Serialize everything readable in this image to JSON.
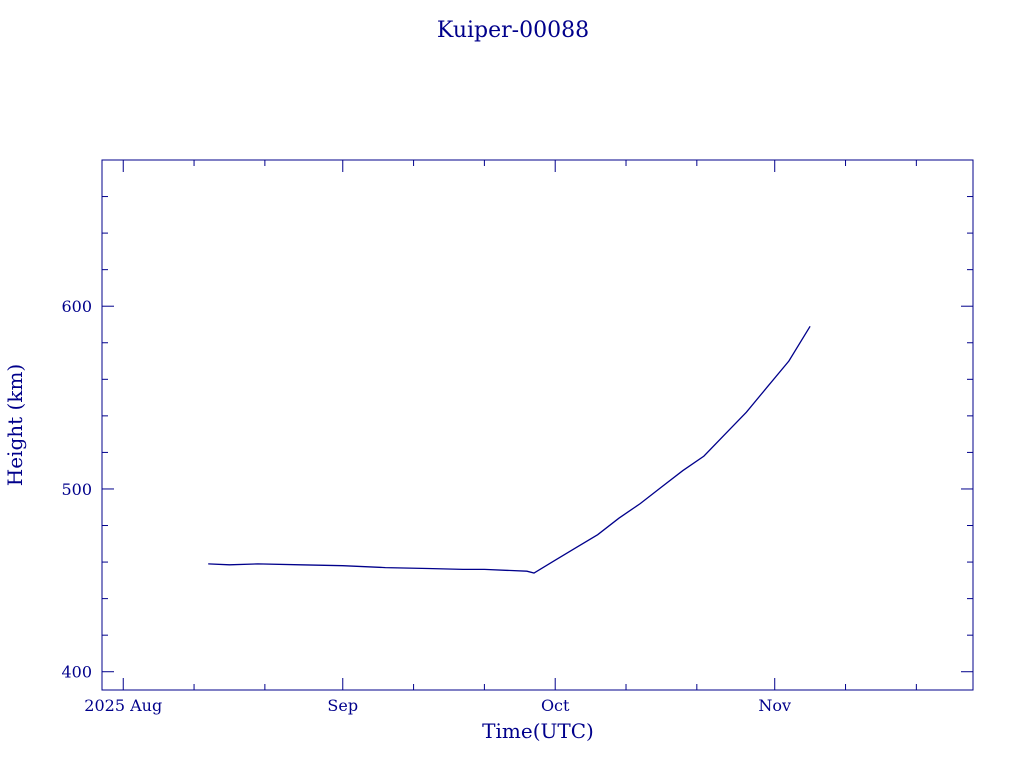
{
  "chart_data": {
    "type": "line",
    "title": "Kuiper-00088",
    "xlabel": "Time(UTC)",
    "ylabel": "Height (km)",
    "color": "#00008b",
    "grid": false,
    "legend": "none",
    "xlim": [
      "2025-07-29",
      "2025-11-29"
    ],
    "ylim": [
      390,
      680
    ],
    "x_ticks": [
      {
        "date": "2025-08-01",
        "label": "2025 Aug"
      },
      {
        "date": "2025-09-01",
        "label": "Sep"
      },
      {
        "date": "2025-10-01",
        "label": "Oct"
      },
      {
        "date": "2025-11-01",
        "label": "Nov"
      }
    ],
    "y_ticks": [
      {
        "value": 400,
        "label": "400"
      },
      {
        "value": 500,
        "label": "500"
      },
      {
        "value": 600,
        "label": "600"
      }
    ],
    "series": [
      {
        "x": [
          "2025-08-13",
          "2025-08-16",
          "2025-08-20",
          "2025-08-26",
          "2025-09-01",
          "2025-09-07",
          "2025-09-13",
          "2025-09-18",
          "2025-09-21",
          "2025-09-24",
          "2025-09-27",
          "2025-09-28",
          "2025-10-01",
          "2025-10-04",
          "2025-10-07",
          "2025-10-10",
          "2025-10-13",
          "2025-10-16",
          "2025-10-19",
          "2025-10-22",
          "2025-10-25",
          "2025-10-28",
          "2025-10-31",
          "2025-11-03",
          "2025-11-06"
        ],
        "y": [
          459,
          458.5,
          459,
          458.5,
          458,
          457,
          456.5,
          456,
          456,
          455.5,
          455,
          454,
          461,
          468,
          475,
          484,
          492,
          501,
          510,
          518,
          530,
          542,
          556,
          570,
          589
        ]
      }
    ]
  }
}
